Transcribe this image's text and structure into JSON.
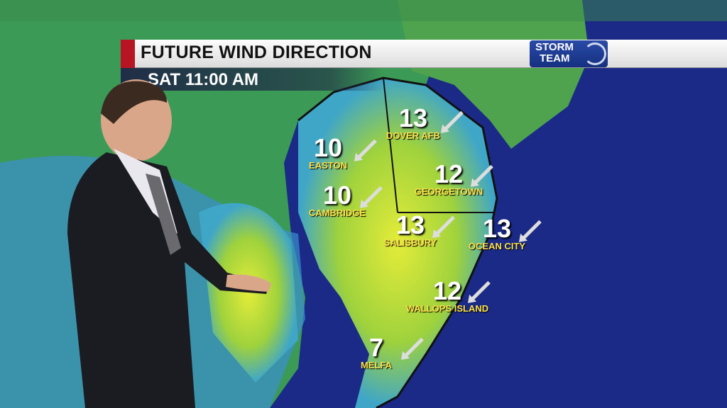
{
  "banner": {
    "title": "FUTURE WIND DIRECTION",
    "time": "SAT  11:00 AM"
  },
  "logo": {
    "line1": "STORM",
    "line2": "TEAM"
  },
  "colors": {
    "ocean": "#1a2a86",
    "land_low": "#2f8fd0",
    "land_mid": "#4fb84a",
    "land_high": "#d8e83a",
    "banner_red": "#b81524"
  },
  "wind_direction": "northeast (arrows point southwest)",
  "cities": [
    {
      "speed": "13",
      "name": "DOVER AFB"
    },
    {
      "speed": "10",
      "name": "EASTON"
    },
    {
      "speed": "12",
      "name": "GEORGETOWN"
    },
    {
      "speed": "10",
      "name": "CAMBRIDGE"
    },
    {
      "speed": "13",
      "name": "SALISBURY"
    },
    {
      "speed": "13",
      "name": "OCEAN CITY"
    },
    {
      "speed": "12",
      "name": "WALLOPS ISLAND"
    },
    {
      "speed": "7",
      "name": "MELFA"
    }
  ]
}
